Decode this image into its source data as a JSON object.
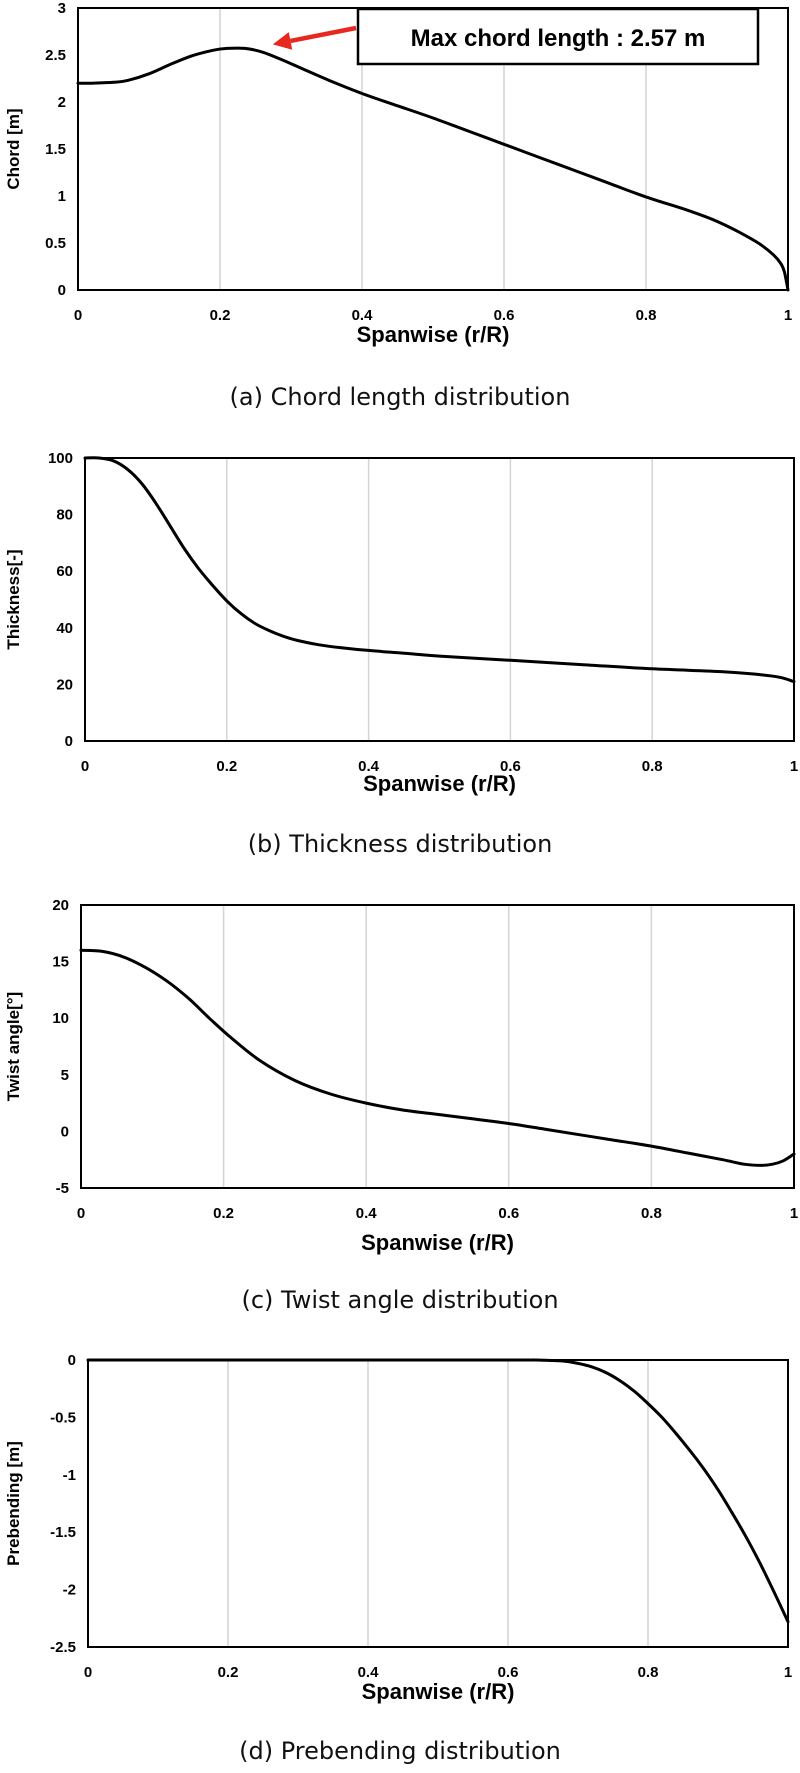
{
  "chart_data": [
    {
      "id": "a",
      "type": "line",
      "caption": "(a) Chord length distribution",
      "xlabel": "Spanwise (r/R)",
      "ylabel": "Chord [m]",
      "xlim": [
        0,
        1
      ],
      "ylim": [
        0,
        3
      ],
      "xticks": [
        "0",
        "0.2",
        "0.4",
        "0.6",
        "0.8",
        "1"
      ],
      "yticks": [
        "0",
        "0.5",
        "1",
        "1.5",
        "2",
        "2.5",
        "3"
      ],
      "grid": "vertical",
      "annotation": {
        "text": "Max chord length : 2.57 m",
        "point": [
          0.235,
          2.57
        ],
        "arrow_color": "#e8271f"
      },
      "series": [
        {
          "x": [
            0,
            0.02,
            0.05,
            0.07,
            0.1,
            0.13,
            0.16,
            0.19,
            0.21,
            0.235,
            0.26,
            0.29,
            0.32,
            0.36,
            0.4,
            0.45,
            0.5,
            0.55,
            0.6,
            0.65,
            0.7,
            0.75,
            0.8,
            0.85,
            0.88,
            0.9,
            0.93,
            0.96,
            0.98,
            0.99,
            0.995,
            1.0
          ],
          "y": [
            2.2,
            2.2,
            2.21,
            2.23,
            2.3,
            2.4,
            2.49,
            2.55,
            2.57,
            2.57,
            2.53,
            2.44,
            2.34,
            2.21,
            2.09,
            1.96,
            1.83,
            1.69,
            1.55,
            1.41,
            1.27,
            1.13,
            0.99,
            0.87,
            0.79,
            0.73,
            0.62,
            0.49,
            0.37,
            0.28,
            0.19,
            0.0
          ]
        }
      ]
    },
    {
      "id": "b",
      "type": "line",
      "caption": "(b) Thickness distribution",
      "xlabel": "Spanwise (r/R)",
      "ylabel": "Thickness[-]",
      "xlim": [
        0,
        1
      ],
      "ylim": [
        0,
        100
      ],
      "xticks": [
        "0",
        "0.2",
        "0.4",
        "0.6",
        "0.8",
        "1"
      ],
      "yticks": [
        "0",
        "20",
        "40",
        "60",
        "80",
        "100"
      ],
      "grid": "vertical",
      "series": [
        {
          "x": [
            0,
            0.02,
            0.04,
            0.06,
            0.08,
            0.1,
            0.12,
            0.14,
            0.16,
            0.18,
            0.2,
            0.22,
            0.24,
            0.26,
            0.28,
            0.3,
            0.33,
            0.36,
            0.4,
            0.45,
            0.5,
            0.6,
            0.7,
            0.8,
            0.9,
            0.95,
            0.98,
            1.0
          ],
          "y": [
            100,
            100,
            99,
            96,
            91,
            84,
            76,
            68,
            61,
            55,
            49.5,
            45,
            41.5,
            39,
            37,
            35.5,
            34,
            33,
            32,
            31,
            30,
            28.5,
            27,
            25.5,
            24.5,
            23.5,
            22.5,
            21
          ]
        }
      ]
    },
    {
      "id": "c",
      "type": "line",
      "caption": "(c) Twist angle distribution",
      "xlabel": "Spanwise (r/R)",
      "ylabel": "Twist angle[°]",
      "xlim": [
        0,
        1
      ],
      "ylim": [
        -5,
        20
      ],
      "xticks": [
        "0",
        "0.2",
        "0.4",
        "0.6",
        "0.8",
        "1"
      ],
      "yticks": [
        "-5",
        "0",
        "5",
        "10",
        "15",
        "20"
      ],
      "grid": "vertical",
      "series": [
        {
          "x": [
            0,
            0.03,
            0.06,
            0.09,
            0.12,
            0.15,
            0.18,
            0.21,
            0.25,
            0.3,
            0.35,
            0.4,
            0.45,
            0.5,
            0.55,
            0.6,
            0.65,
            0.7,
            0.75,
            0.8,
            0.85,
            0.9,
            0.93,
            0.955,
            0.97,
            0.985,
            1.0
          ],
          "y": [
            16,
            15.9,
            15.4,
            14.5,
            13.3,
            11.8,
            10.0,
            8.3,
            6.3,
            4.5,
            3.3,
            2.5,
            1.9,
            1.5,
            1.1,
            0.7,
            0.2,
            -0.3,
            -0.8,
            -1.3,
            -1.9,
            -2.5,
            -2.9,
            -3.0,
            -2.9,
            -2.6,
            -2.0
          ]
        }
      ]
    },
    {
      "id": "d",
      "type": "line",
      "caption": "(d) Prebending distribution",
      "xlabel": "Spanwise (r/R)",
      "ylabel": "Prebending [m]",
      "xlim": [
        0,
        1
      ],
      "ylim": [
        -2.5,
        0
      ],
      "xticks": [
        "0",
        "0.2",
        "0.4",
        "0.6",
        "0.8",
        "1"
      ],
      "yticks": [
        "-2.5",
        "-2",
        "-1.5",
        "-1",
        "-0.5",
        "0"
      ],
      "grid": "vertical",
      "series": [
        {
          "x": [
            0,
            0.3,
            0.6,
            0.64,
            0.68,
            0.7,
            0.72,
            0.74,
            0.76,
            0.78,
            0.8,
            0.82,
            0.84,
            0.86,
            0.88,
            0.9,
            0.92,
            0.94,
            0.96,
            0.98,
            1.0
          ],
          "y": [
            0,
            0,
            0,
            0,
            -0.01,
            -0.03,
            -0.06,
            -0.11,
            -0.18,
            -0.27,
            -0.38,
            -0.5,
            -0.64,
            -0.79,
            -0.95,
            -1.13,
            -1.33,
            -1.54,
            -1.77,
            -2.02,
            -2.28
          ]
        }
      ]
    }
  ]
}
